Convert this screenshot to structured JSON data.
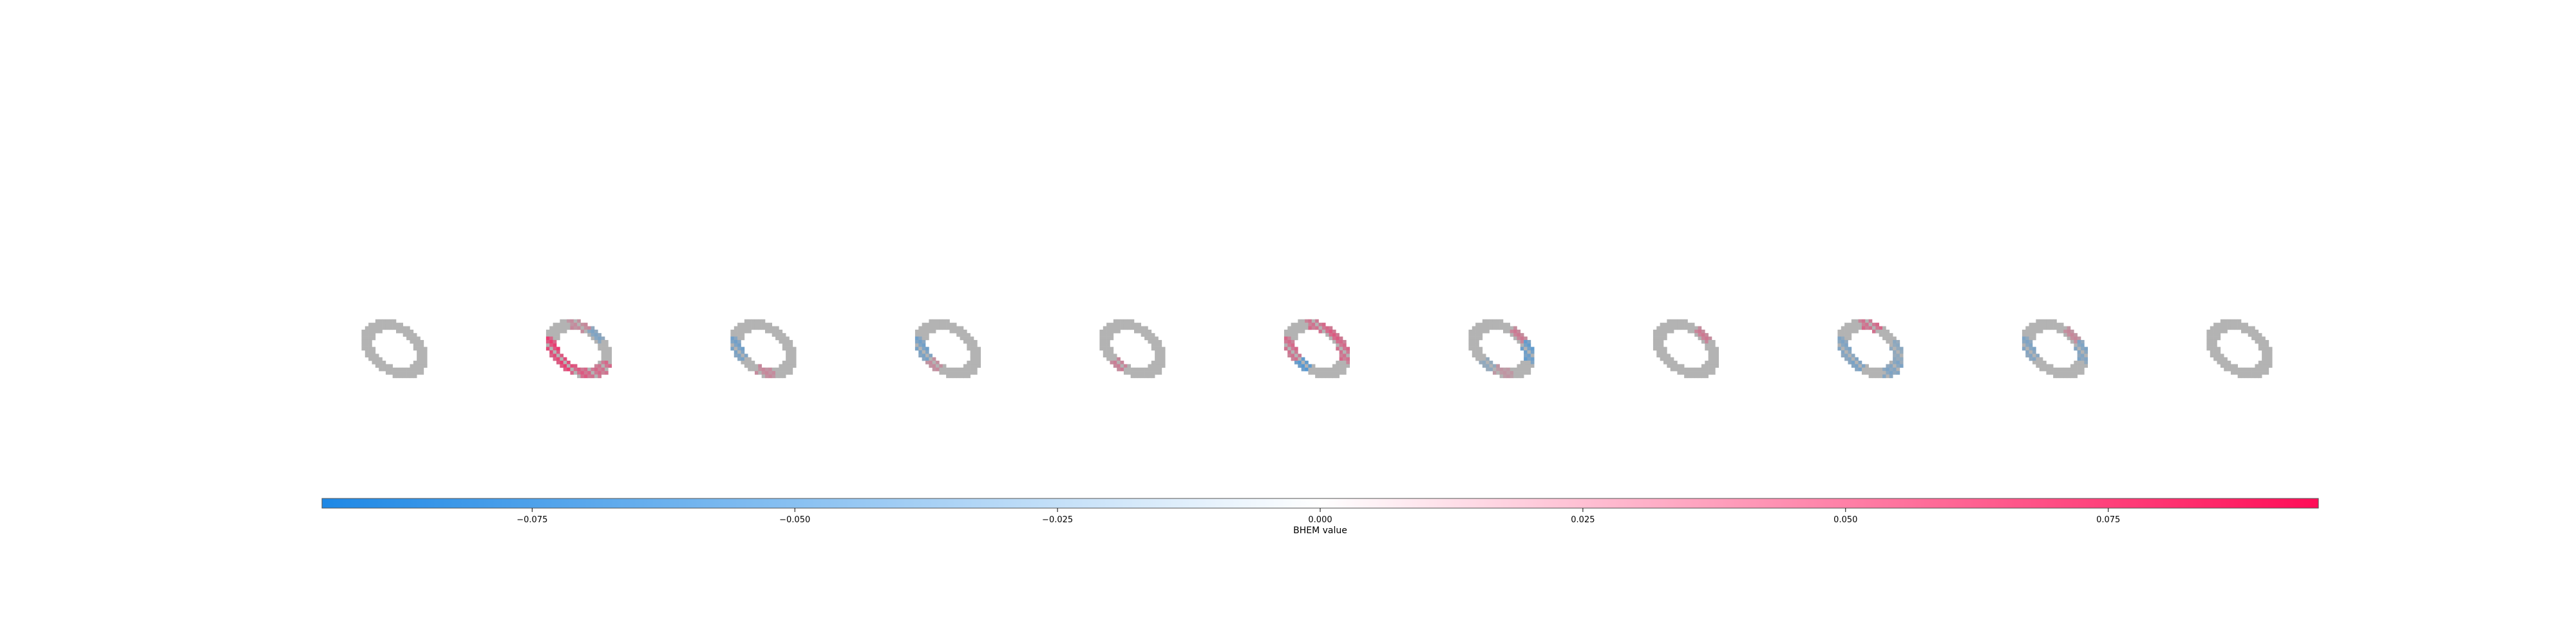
{
  "chart_data": {
    "type": "heatmap",
    "title": "",
    "colorbar": {
      "label": "BHEM value",
      "range": [
        -0.095,
        0.095
      ],
      "ticks": [
        -0.075,
        -0.05,
        -0.025,
        0.0,
        0.025,
        0.05,
        0.075
      ],
      "tick_labels": [
        "−0.075",
        "−0.050",
        "−0.025",
        "0.000",
        "0.025",
        "0.050",
        "0.075"
      ],
      "colors": {
        "negative": "#1e88e5",
        "neutral": "#ffffff",
        "positive": "#ff0d57"
      }
    },
    "digit_color": "#b3b3b3",
    "panel_count": 11,
    "panels": [
      {
        "index": 0,
        "overlay": []
      },
      {
        "index": 1,
        "overlay": [
          {
            "region": "lower-left",
            "value": 0.09
          },
          {
            "region": "left",
            "value": 0.08
          },
          {
            "region": "bottom",
            "value": 0.06
          },
          {
            "region": "lower-right",
            "value": 0.05
          },
          {
            "region": "top",
            "value": 0.03
          },
          {
            "region": "top-right",
            "value": -0.04
          }
        ]
      },
      {
        "index": 2,
        "overlay": [
          {
            "region": "left",
            "value": -0.05
          },
          {
            "region": "bottom",
            "value": 0.03
          }
        ]
      },
      {
        "index": 3,
        "overlay": [
          {
            "region": "left",
            "value": -0.05
          },
          {
            "region": "lower-left",
            "value": 0.03
          }
        ]
      },
      {
        "index": 4,
        "overlay": [
          {
            "region": "lower-left",
            "value": 0.04
          }
        ]
      },
      {
        "index": 5,
        "overlay": [
          {
            "region": "lower-left",
            "value": -0.08
          },
          {
            "region": "left",
            "value": 0.05
          },
          {
            "region": "top",
            "value": 0.05
          },
          {
            "region": "top-right",
            "value": 0.06
          },
          {
            "region": "right",
            "value": 0.05
          }
        ]
      },
      {
        "index": 6,
        "overlay": [
          {
            "region": "right",
            "value": -0.06
          },
          {
            "region": "top-right",
            "value": 0.04
          },
          {
            "region": "lower-left",
            "value": -0.03
          },
          {
            "region": "bottom",
            "value": 0.02
          }
        ]
      },
      {
        "index": 7,
        "overlay": [
          {
            "region": "top-right",
            "value": 0.04
          }
        ]
      },
      {
        "index": 8,
        "overlay": [
          {
            "region": "lower-left",
            "value": -0.05
          },
          {
            "region": "left",
            "value": -0.04
          },
          {
            "region": "top",
            "value": 0.05
          },
          {
            "region": "lower-right",
            "value": -0.04
          },
          {
            "region": "right",
            "value": -0.03
          }
        ]
      },
      {
        "index": 9,
        "overlay": [
          {
            "region": "left",
            "value": -0.04
          },
          {
            "region": "right",
            "value": -0.04
          },
          {
            "region": "top-right",
            "value": 0.03
          }
        ]
      },
      {
        "index": 10,
        "overlay": []
      }
    ]
  }
}
